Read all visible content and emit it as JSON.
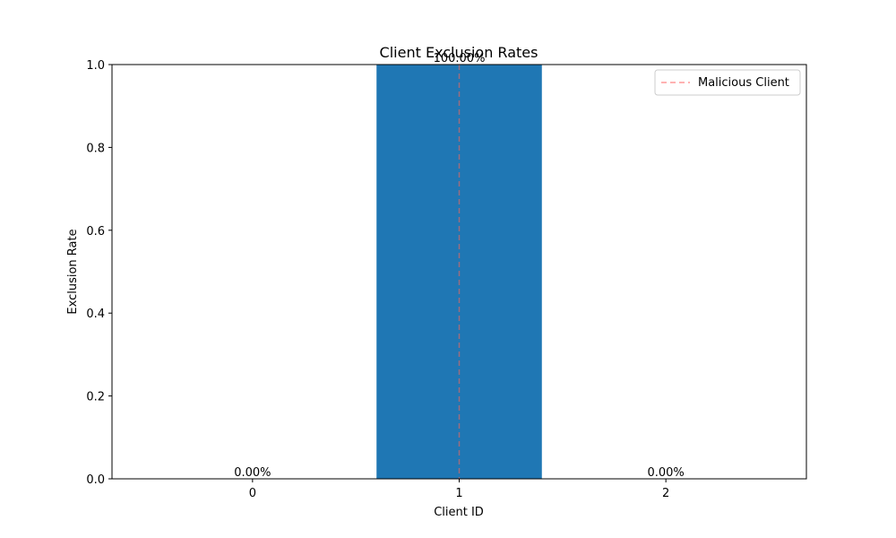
{
  "chart_data": {
    "type": "bar",
    "title": "Client Exclusion Rates",
    "xlabel": "Client ID",
    "ylabel": "Exclusion Rate",
    "categories": [
      "0",
      "1",
      "2"
    ],
    "values": [
      0.0,
      1.0,
      0.0
    ],
    "data_labels": [
      "0.00%",
      "100.00%",
      "0.00%"
    ],
    "ylim": [
      0,
      1
    ],
    "yticks": [
      0.0,
      0.2,
      0.4,
      0.6,
      0.8,
      1.0
    ],
    "ytick_labels": [
      "0.0",
      "0.2",
      "0.4",
      "0.6",
      "0.8",
      "1.0"
    ],
    "bar_color": "#1f77b4",
    "reference_line": {
      "label": "Malicious Client",
      "x_category": "1",
      "style": "dashed",
      "color": "#ff9999"
    },
    "legend": {
      "position": "top-right",
      "entries": [
        "Malicious Client"
      ]
    },
    "grid": false
  }
}
